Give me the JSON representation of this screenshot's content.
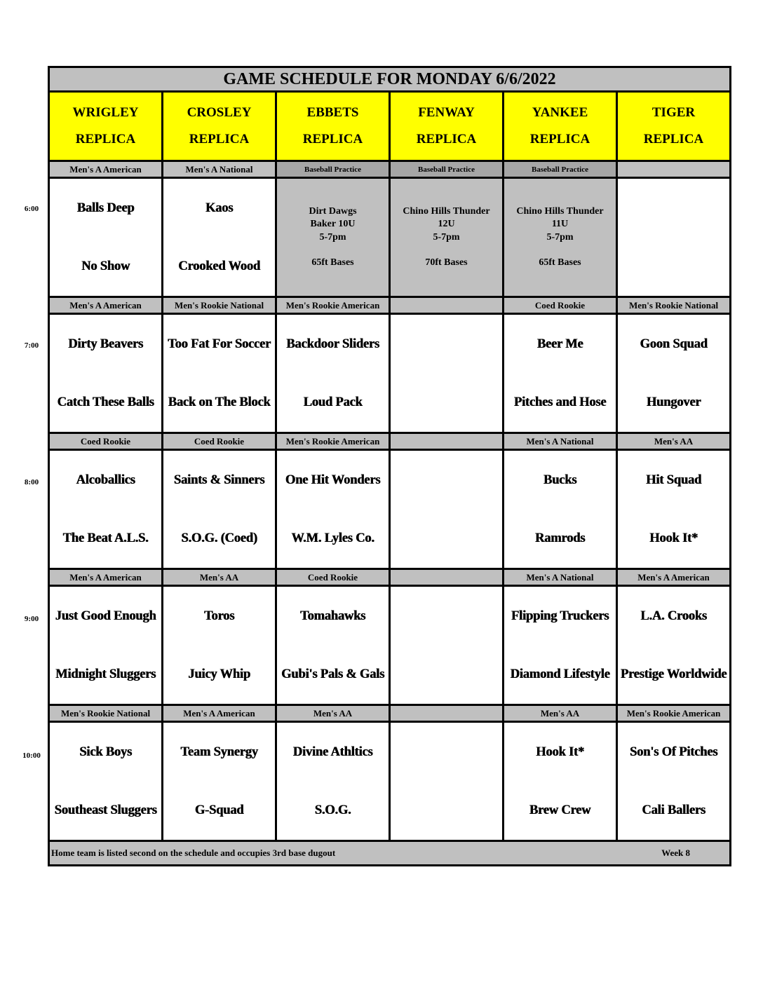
{
  "title": "GAME SCHEDULE FOR MONDAY 6/6/2022",
  "fields": [
    {
      "name": "WRIGLEY",
      "sub": "REPLICA"
    },
    {
      "name": "CROSLEY",
      "sub": "REPLICA"
    },
    {
      "name": "EBBETS",
      "sub": "REPLICA"
    },
    {
      "name": "FENWAY",
      "sub": "REPLICA"
    },
    {
      "name": "YANKEE",
      "sub": "REPLICA"
    },
    {
      "name": "TIGER",
      "sub": "REPLICA"
    }
  ],
  "colors": {
    "header": "#ffff00",
    "band": "#c0c0c0",
    "practice_band": "#a6a6a6"
  },
  "slots": [
    {
      "time": "6:00",
      "cells": [
        {
          "division": "Men's A American",
          "teams": [
            "Balls Deep",
            "No Show"
          ]
        },
        {
          "division": "Men's A National",
          "teams": [
            "Kaos",
            "Crooked Wood"
          ]
        },
        {
          "division": "Baseball Practice",
          "practice": [
            "Dirt Dawgs",
            "Baker 10U",
            "5-7pm",
            "",
            "65ft Bases"
          ]
        },
        {
          "division": "Baseball Practice",
          "practice": [
            "Chino Hills Thunder",
            "12U",
            "5-7pm",
            "",
            "70ft Bases"
          ]
        },
        {
          "division": "Baseball Practice",
          "practice": [
            "Chino Hills Thunder",
            "11U",
            "5-7pm",
            "",
            "65ft Bases"
          ]
        },
        {
          "division": "",
          "teams": [
            "",
            ""
          ]
        }
      ]
    },
    {
      "time": "7:00",
      "cells": [
        {
          "division": "Men's A American",
          "teams": [
            "Dirty Beavers",
            "Catch These Balls"
          ]
        },
        {
          "division": "Men's Rookie National",
          "teams": [
            "Too Fat For Soccer",
            "Back on The Block"
          ]
        },
        {
          "division": "Men's Rookie American",
          "teams": [
            "Backdoor Sliders",
            "Loud Pack"
          ]
        },
        {
          "division": "",
          "teams": [
            "",
            ""
          ]
        },
        {
          "division": "Coed Rookie",
          "teams": [
            "Beer Me",
            "Pitches and Hose"
          ]
        },
        {
          "division": "Men's Rookie National",
          "teams": [
            "Goon Squad",
            "Hungover"
          ]
        }
      ]
    },
    {
      "time": "8:00",
      "cells": [
        {
          "division": "Coed Rookie",
          "teams": [
            "Alcoballics",
            "The Beat A.L.S."
          ]
        },
        {
          "division": "Coed Rookie",
          "teams": [
            "Saints & Sinners",
            "S.O.G. (Coed)"
          ]
        },
        {
          "division": "Men's Rookie American",
          "teams": [
            "One Hit Wonders",
            "W.M. Lyles Co."
          ]
        },
        {
          "division": "",
          "teams": [
            "",
            ""
          ]
        },
        {
          "division": "Men's A National",
          "teams": [
            "Bucks",
            "Ramrods"
          ]
        },
        {
          "division": "Men's AA",
          "teams": [
            "Hit Squad",
            "Hook It*"
          ]
        }
      ]
    },
    {
      "time": "9:00",
      "cells": [
        {
          "division": "Men's A American",
          "teams": [
            "Just Good Enough",
            "Midnight Sluggers"
          ]
        },
        {
          "division": "Men's AA",
          "teams": [
            "Toros",
            "Juicy Whip"
          ]
        },
        {
          "division": "Coed Rookie",
          "teams": [
            "Tomahawks",
            "Gubi's Pals & Gals"
          ]
        },
        {
          "division": "",
          "teams": [
            "",
            ""
          ]
        },
        {
          "division": "Men's A National",
          "teams": [
            "Flipping Truckers",
            "Diamond Lifestyle"
          ]
        },
        {
          "division": "Men's A American",
          "teams": [
            "L.A. Crooks",
            "Prestige Worldwide"
          ]
        }
      ]
    },
    {
      "time": "10:00",
      "cells": [
        {
          "division": "Men's Rookie National",
          "teams": [
            "Sick Boys",
            "Southeast Sluggers"
          ]
        },
        {
          "division": "Men's A American",
          "teams": [
            "Team Synergy",
            "G-Squad"
          ]
        },
        {
          "division": "Men's AA",
          "teams": [
            "Divine Athltics",
            "S.O.G."
          ]
        },
        {
          "division": "",
          "teams": [
            "",
            ""
          ]
        },
        {
          "division": "Men's AA",
          "teams": [
            "Hook It*",
            "Brew Crew"
          ]
        },
        {
          "division": "Men's Rookie American",
          "teams": [
            "Son's Of Pitches",
            "Cali Ballers"
          ]
        }
      ]
    }
  ],
  "footer": {
    "note": "Home team is listed second on the schedule and occupies 3rd base dugout",
    "week": "Week 8"
  }
}
